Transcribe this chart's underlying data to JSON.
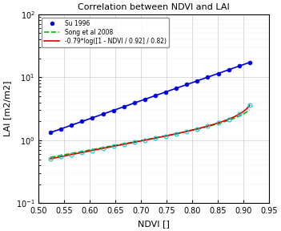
{
  "title": "Correlation between NDVI and LAI",
  "xlabel": "NDVI []",
  "ylabel": "LAI [m2/m2]",
  "xlim": [
    0.5,
    0.95
  ],
  "ylim": [
    0.1,
    100
  ],
  "xticks": [
    0.5,
    0.55,
    0.6,
    0.65,
    0.7,
    0.75,
    0.8,
    0.85,
    0.9,
    0.95
  ],
  "legend": {
    "su": "Su 1996",
    "song": "Song et al 2008",
    "formula": "-0.79*log([1 - NDVI / 0.92] / 0.82)"
  },
  "colors": {
    "su": "#0000dd",
    "song": "#00bb00",
    "formula": "#dd0000",
    "measured": "#00cccc"
  },
  "ndvi_min": 0.523,
  "ndvi_max": 0.912,
  "n_su_pts": 20,
  "n_meas_pts": 20,
  "background": "#ffffff",
  "figsize": [
    3.51,
    2.88
  ],
  "dpi": 100
}
